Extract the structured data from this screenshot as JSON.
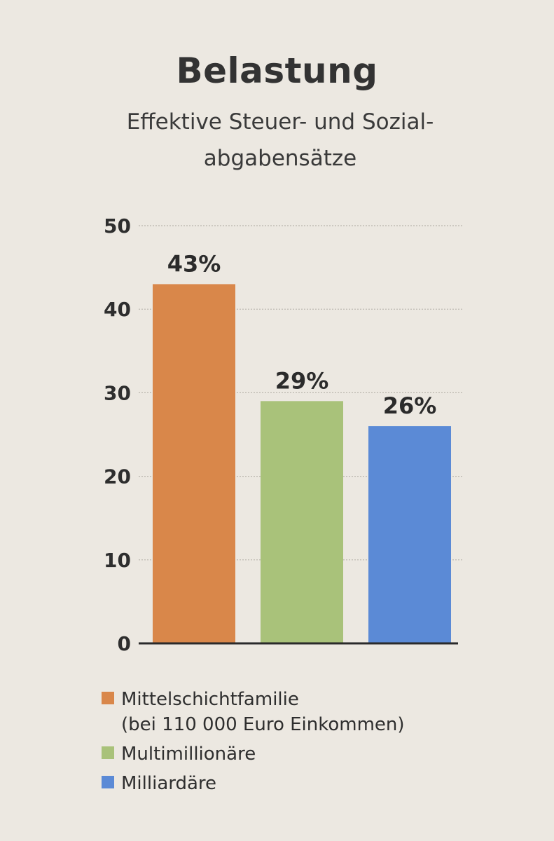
{
  "title": "Belastung",
  "subtitle_line1": "Effektive Steuer- und Sozial-",
  "subtitle_line2": "abgabensätze",
  "chart_data": {
    "type": "bar",
    "title": "Belastung",
    "subtitle": "Effektive Steuer- und Sozialabgabensätze",
    "categories": [
      "Mittelschichtfamilie",
      "Multimillionäre",
      "Milliardäre"
    ],
    "values": [
      43,
      29,
      26
    ],
    "value_labels": [
      "43%",
      "29%",
      "26%"
    ],
    "colors": [
      "#d9874a",
      "#a9c27a",
      "#5b8ad6"
    ],
    "yticks": [
      "50",
      "40",
      "30",
      "20",
      "10",
      "0"
    ],
    "ytick_values": [
      50,
      40,
      30,
      20,
      10,
      0
    ],
    "ylim": [
      0,
      50
    ],
    "grid": true,
    "legend_position": "bottom"
  },
  "legend": [
    {
      "label": "Mittelschichtfamilie",
      "sub": "(bei 110 000 Euro Einkommen)",
      "color": "#d9874a"
    },
    {
      "label": "Multimillionäre",
      "sub": "",
      "color": "#a9c27a"
    },
    {
      "label": "Milliardäre",
      "sub": "",
      "color": "#5b8ad6"
    }
  ]
}
